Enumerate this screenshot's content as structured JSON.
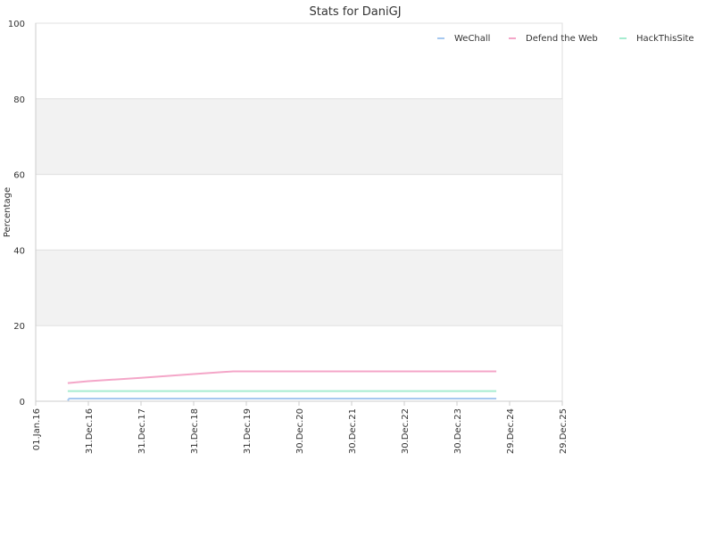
{
  "chart_data": {
    "type": "line",
    "title": "Stats for DaniGJ",
    "xlabel": "",
    "ylabel": "Percentage",
    "ylim": [
      0,
      100
    ],
    "yticks": [
      0,
      20,
      40,
      60,
      80,
      100
    ],
    "xlim": [
      "2016-01-01",
      "2025-12-29"
    ],
    "xticks": [
      {
        "date": "2016-01-01",
        "label": "01.Jan.16"
      },
      {
        "date": "2016-12-31",
        "label": "31.Dec.16"
      },
      {
        "date": "2017-12-31",
        "label": "31.Dec.17"
      },
      {
        "date": "2018-12-31",
        "label": "31.Dec.18"
      },
      {
        "date": "2019-12-31",
        "label": "31.Dec.19"
      },
      {
        "date": "2020-12-30",
        "label": "30.Dec.20"
      },
      {
        "date": "2021-12-30",
        "label": "30.Dec.21"
      },
      {
        "date": "2022-12-30",
        "label": "30.Dec.22"
      },
      {
        "date": "2023-12-30",
        "label": "30.Dec.23"
      },
      {
        "date": "2024-12-29",
        "label": "29.Dec.24"
      },
      {
        "date": "2025-12-29",
        "label": "29.Dec.25"
      }
    ],
    "legend_position": "top-right",
    "grid": true,
    "alternating_bands": true,
    "band_color": "#f2f2f2",
    "series": [
      {
        "name": "WeChall",
        "color": "#a6c8f0",
        "x": [
          "2016-08-10",
          "2016-08-20",
          "2019-12-31",
          "2022-12-30",
          "2024-09-28"
        ],
        "y": [
          0.2,
          0.7,
          0.7,
          0.7,
          0.7
        ]
      },
      {
        "name": "Defend the Web",
        "color": "#f4a6c8",
        "x": [
          "2016-08-10",
          "2016-12-31",
          "2017-12-31",
          "2018-12-31",
          "2019-10-01",
          "2020-12-30",
          "2022-12-30",
          "2024-09-28"
        ],
        "y": [
          4.8,
          5.3,
          6.2,
          7.2,
          7.9,
          7.9,
          7.9,
          7.9
        ]
      },
      {
        "name": "HackThisSite",
        "color": "#a6ecd0",
        "x": [
          "2016-08-10",
          "2019-12-31",
          "2022-12-30",
          "2024-09-28"
        ],
        "y": [
          2.7,
          2.7,
          2.7,
          2.7
        ]
      }
    ]
  }
}
